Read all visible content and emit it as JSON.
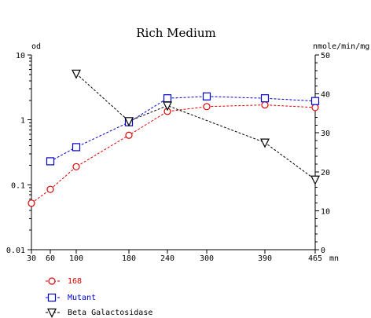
{
  "chart_data": {
    "type": "line",
    "title": "Rich Medium",
    "left_axis": {
      "label": "od",
      "scale": "log",
      "range": [
        0.01,
        10
      ],
      "tick_labels": [
        "10",
        "1",
        "0.1",
        "0.01"
      ]
    },
    "right_axis": {
      "label": "nmole/min/mg",
      "scale": "linear",
      "range": [
        0,
        50
      ],
      "tick_labels": [
        "50",
        "40",
        "30",
        "20",
        "10",
        "0"
      ]
    },
    "x_axis": {
      "unit_label": "mn",
      "range": [
        30,
        465
      ],
      "ticks": [
        30,
        60,
        100,
        180,
        240,
        300,
        390,
        465
      ],
      "tick_labels": [
        "30",
        "60",
        "100",
        "180",
        "240",
        "300",
        "390",
        "465"
      ]
    },
    "grid": false,
    "legend_position": "bottom-left",
    "series": [
      {
        "name": "168",
        "axis": "left",
        "marker": "circle",
        "color": "#dd0000",
        "line_style": "dashed",
        "x": [
          30,
          60,
          100,
          180,
          240,
          300,
          390,
          465
        ],
        "y": [
          0.052,
          0.085,
          0.19,
          0.58,
          1.35,
          1.6,
          1.7,
          1.55
        ]
      },
      {
        "name": "Mutant",
        "axis": "left",
        "marker": "square",
        "color": "#0000cc",
        "line_style": "dashed",
        "x": [
          60,
          100,
          180,
          240,
          300,
          390,
          465
        ],
        "y": [
          0.23,
          0.38,
          0.92,
          2.15,
          2.3,
          2.15,
          1.95
        ]
      },
      {
        "name": "Beta Galactosidase",
        "axis": "right",
        "marker": "triangle-down",
        "color": "#000000",
        "line_style": "dashed",
        "x": [
          100,
          180,
          240,
          390,
          465
        ],
        "y": [
          45.2,
          33,
          37,
          27.5,
          18
        ]
      }
    ]
  }
}
